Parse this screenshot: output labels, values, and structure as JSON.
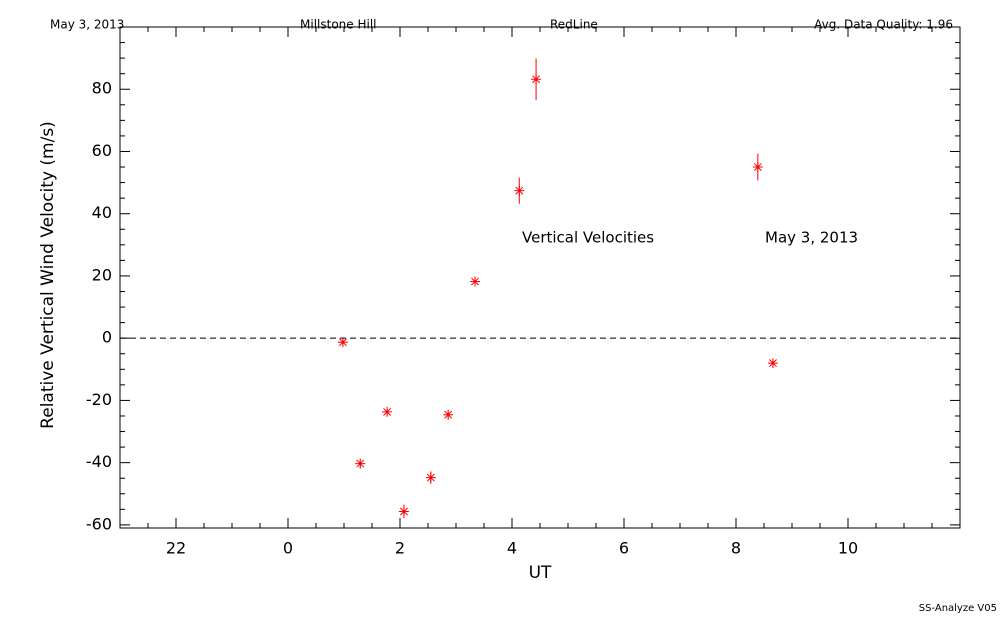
{
  "chart_data": {
    "type": "scatter",
    "header": [
      "May 3, 2013",
      "Millstone Hill",
      "RedLine",
      "Avg. Data Quality: 1.96"
    ],
    "annotations": [
      "Vertical Velocities",
      "May 3, 2013"
    ],
    "footer": "SS-Analyze V05",
    "x_label": "UT",
    "y_label": "Relative Vertical Wind Velocity (m/s)",
    "x": [
      0.98,
      1.29,
      1.77,
      2.07,
      2.55,
      2.86,
      3.34,
      4.13,
      4.43,
      8.39,
      8.66
    ],
    "values": [
      -1.3,
      -40.3,
      -23.7,
      -55.7,
      -44.8,
      -24.6,
      18.2,
      47.4,
      83.2,
      55.0,
      -8.0
    ],
    "errors": [
      0.8,
      1.0,
      0.8,
      2.2,
      2.0,
      1.0,
      1.0,
      4.2,
      6.7,
      4.3,
      1.0
    ],
    "color": "#ff0000",
    "reference_line": 0,
    "xlim": [
      -3,
      12
    ],
    "xticks": [
      {
        "value": -2,
        "label": "22"
      },
      0,
      2,
      4,
      6,
      8,
      10
    ],
    "ylim": [
      -61,
      100
    ],
    "yticks": [
      -60,
      -40,
      -20,
      0,
      20,
      40,
      60,
      80
    ]
  }
}
